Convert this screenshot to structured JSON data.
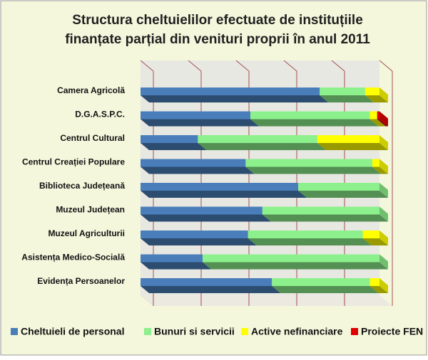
{
  "chart_data": {
    "type": "bar",
    "orientation": "horizontal",
    "stacked": "percent",
    "title": [
      "Structura cheltuielilor efectuate de instituțiile",
      "finanțate parțial din venituri proprii în anul 2011"
    ],
    "categories": [
      "Camera Agricolă",
      "D.G.A.S.P.C.",
      "Centrul Cultural",
      "Centrul Creației Populare",
      "Biblioteca Județeană",
      "Muzeul Județean",
      "Muzeul Agriculturii",
      "Asistența Medico-Socială",
      "Evidența Persoanelor"
    ],
    "series": [
      {
        "name": "Cheltuieli de personal",
        "color": "#4a7ebb",
        "values": [
          75,
          46,
          24,
          44,
          66,
          51,
          45,
          26,
          55
        ]
      },
      {
        "name": "Bunuri si servicii",
        "color": "#8cf08c",
        "values": [
          19,
          50,
          50,
          53,
          34,
          49,
          48,
          74,
          41
        ]
      },
      {
        "name": "Active nefinanciare",
        "color": "#ffff00",
        "values": [
          6,
          3,
          26,
          3,
          0,
          0,
          7,
          0,
          4
        ]
      },
      {
        "name": "Proiecte FEN",
        "color": "#e00000",
        "values": [
          0,
          1,
          0,
          0,
          0,
          0,
          0,
          0,
          0
        ]
      }
    ],
    "xlim": [
      0,
      100
    ],
    "xticks": [
      0,
      20,
      40,
      60,
      80,
      100
    ],
    "grid": true,
    "legend": "bottom"
  }
}
